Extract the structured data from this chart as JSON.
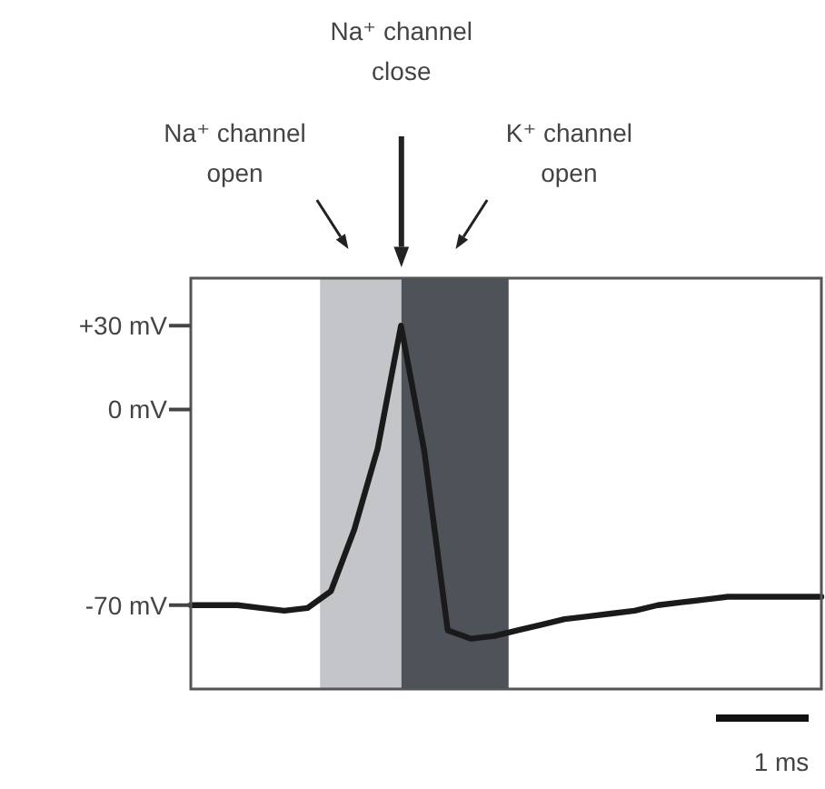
{
  "chart_data": {
    "type": "line",
    "ylim": [
      -100,
      47
    ],
    "categories": [
      null,
      null,
      null,
      null,
      null,
      null,
      null,
      null,
      null,
      null,
      null,
      null,
      null,
      null,
      null,
      null,
      null,
      null,
      null,
      null,
      null,
      null,
      null,
      null,
      null,
      null,
      null,
      null
    ],
    "yticks": [
      {
        "value": 30,
        "label": "+30 mV"
      },
      {
        "value": 0,
        "label": "0 mV"
      },
      {
        "value": -70,
        "label": "-70 mV"
      }
    ],
    "tick_labels": "y",
    "grid": false,
    "series": [
      {
        "color": "#1a1a1a",
        "values": [
          -70,
          -70,
          -70,
          -71,
          -72,
          -71,
          -65,
          -43,
          -14,
          30,
          -15,
          -79,
          -82,
          -81,
          -79,
          -77,
          -75,
          -74,
          -73,
          -72,
          -70,
          -69,
          -68,
          -67,
          -67,
          -67,
          -67,
          -67
        ]
      }
    ],
    "annotations": [
      "Na⁺ channel open",
      "Na⁺ channel close",
      "K⁺ channel open",
      "1 ms"
    ]
  }
}
